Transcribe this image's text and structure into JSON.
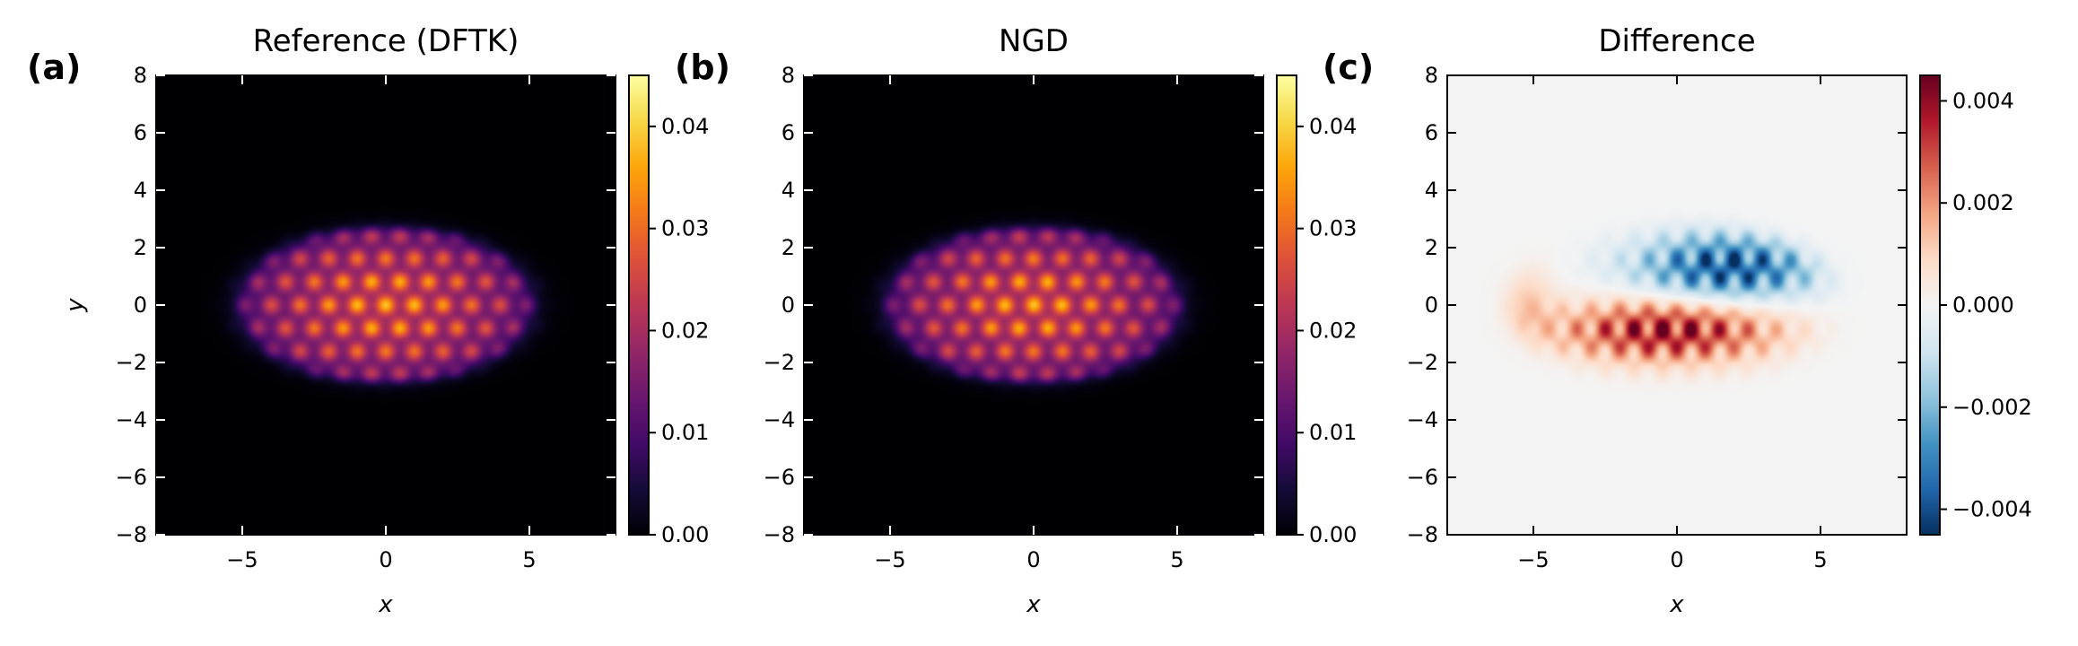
{
  "chart_data": [
    {
      "type": "heatmap",
      "panel_label": "(a)",
      "title": "Reference (DFTK)",
      "xlabel": "x",
      "ylabel": "y",
      "xlim": [
        -8,
        8
      ],
      "ylim": [
        -8,
        8
      ],
      "xticks": [
        -5,
        0,
        5
      ],
      "xtick_labels": [
        "−5",
        "0",
        "5"
      ],
      "yticks": [
        -8,
        -6,
        -4,
        -2,
        0,
        2,
        4,
        6,
        8
      ],
      "ytick_labels": [
        "−8",
        "−6",
        "−4",
        "−2",
        "0",
        "2",
        "4",
        "6",
        "8"
      ],
      "colormap": "inferno",
      "colorbar": {
        "range": [
          0,
          0.045
        ],
        "ticks": [
          0,
          0.01,
          0.02,
          0.03,
          0.04
        ],
        "tick_labels": [
          "0.00",
          "0.01",
          "0.02",
          "0.03",
          "0.04"
        ]
      },
      "density": {
        "model": "elliptical envelope modulated by a hexagonal lattice of peaks",
        "center": [
          0,
          0
        ],
        "semi_axis_x": 5.5,
        "semi_axis_y": 2.9,
        "lattice_spacing_x": 1.0,
        "lattice_spacing_y": 0.82,
        "peak_value": 0.045,
        "brightest_sites": [
          [
            0,
            0
          ],
          [
            -1,
            0
          ],
          [
            1,
            0
          ],
          [
            0,
            0.8
          ],
          [
            0,
            -0.8
          ]
        ]
      }
    },
    {
      "type": "heatmap",
      "panel_label": "(b)",
      "title": "NGD",
      "xlabel": "x",
      "ylabel": "",
      "xlim": [
        -8,
        8
      ],
      "ylim": [
        -8,
        8
      ],
      "xticks": [
        -5,
        0,
        5
      ],
      "xtick_labels": [
        "−5",
        "0",
        "5"
      ],
      "yticks": [
        -8,
        -6,
        -4,
        -2,
        0,
        2,
        4,
        6,
        8
      ],
      "ytick_labels": [
        "−8",
        "−6",
        "−4",
        "−2",
        "0",
        "2",
        "4",
        "6",
        "8"
      ],
      "colormap": "inferno",
      "colorbar": {
        "range": [
          0,
          0.045
        ],
        "ticks": [
          0,
          0.01,
          0.02,
          0.03,
          0.04
        ],
        "tick_labels": [
          "0.00",
          "0.01",
          "0.02",
          "0.03",
          "0.04"
        ]
      },
      "density": {
        "model": "elliptical envelope modulated by a hexagonal lattice of peaks",
        "center": [
          0,
          0
        ],
        "semi_axis_x": 5.5,
        "semi_axis_y": 2.9,
        "lattice_spacing_x": 1.0,
        "lattice_spacing_y": 0.82,
        "peak_value": 0.045
      }
    },
    {
      "type": "heatmap",
      "panel_label": "(c)",
      "title": "Difference",
      "xlabel": "x",
      "ylabel": "",
      "xlim": [
        -8,
        8
      ],
      "ylim": [
        -8,
        8
      ],
      "xticks": [
        -5,
        0,
        5
      ],
      "xtick_labels": [
        "−5",
        "0",
        "5"
      ],
      "yticks": [
        -8,
        -6,
        -4,
        -2,
        0,
        2,
        4,
        6,
        8
      ],
      "ytick_labels": [
        "−8",
        "−6",
        "−4",
        "−2",
        "0",
        "2",
        "4",
        "6",
        "8"
      ],
      "colormap": "RdBu_r",
      "colorbar": {
        "range": [
          -0.0045,
          0.0045
        ],
        "ticks": [
          -0.004,
          -0.002,
          0,
          0.002,
          0.004
        ],
        "tick_labels": [
          "−0.004",
          "−0.002",
          "0.000",
          "0.002",
          "0.004"
        ]
      },
      "difference": {
        "negative_region": "upper-right of the ellipse (y from 0 to 3, x from -2 to 5), strongest near y = 1.5",
        "positive_region": "lower-left of the ellipse (y from -2 to 0.5, x from -6 to 3), strongest near y = -1",
        "min_value": -0.0045,
        "max_value": 0.0042
      }
    }
  ],
  "colors": {
    "background": "#ffffff",
    "axes": "#000000",
    "difference_zero": "#f4f4f4",
    "inferno": [
      "#000004",
      "#160b39",
      "#420a68",
      "#6a176e",
      "#932667",
      "#bc3754",
      "#dd513a",
      "#f37819",
      "#fca50a",
      "#f6d746",
      "#fcffa4"
    ],
    "rdbu": [
      "#053061",
      "#2166ac",
      "#4393c3",
      "#92c5de",
      "#d1e5f0",
      "#f7f7f7",
      "#fddbc7",
      "#f4a582",
      "#d6604d",
      "#b2182b",
      "#67001f"
    ]
  }
}
